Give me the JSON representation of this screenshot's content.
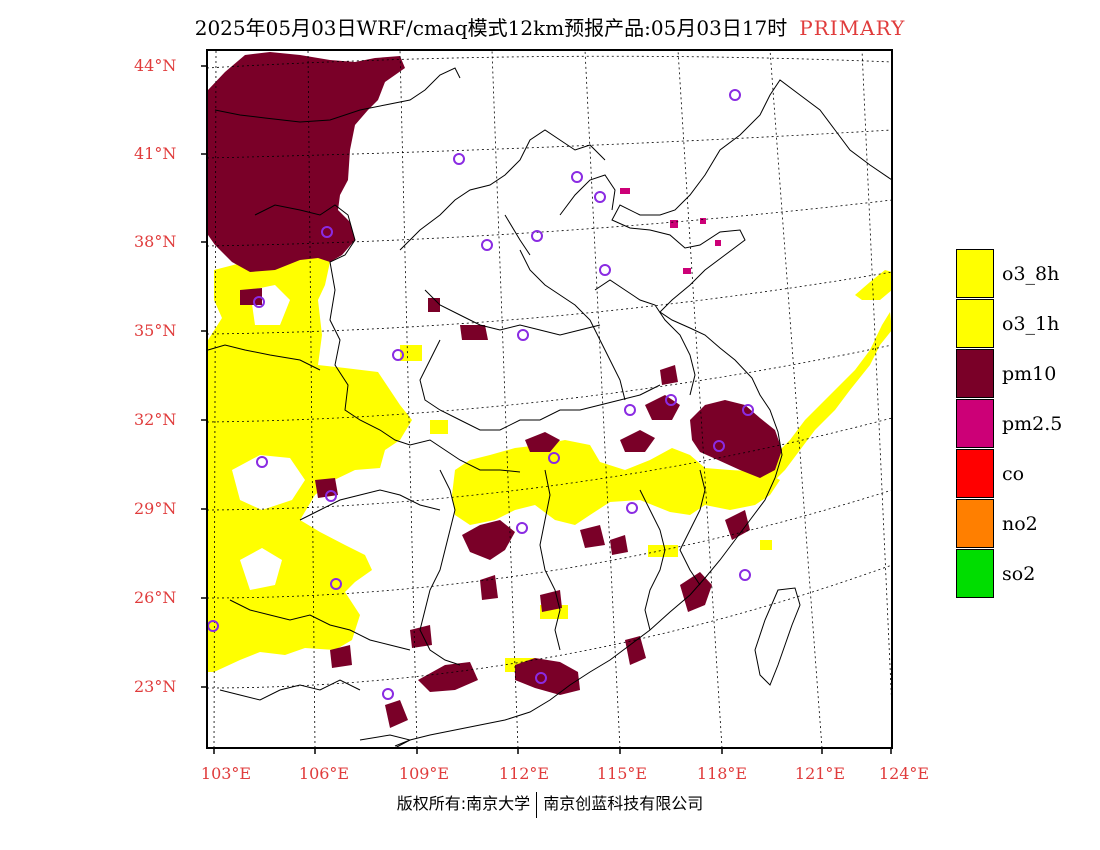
{
  "title": {
    "main": "2025年05月03日WRF/cmaq模式12km预报产品:05月03日17时",
    "tag": "PRIMARY"
  },
  "latitude_labels": [
    "44°N",
    "41°N",
    "38°N",
    "35°N",
    "32°N",
    "29°N",
    "26°N",
    "23°N"
  ],
  "longitude_labels": [
    "103°E",
    "106°E",
    "109°E",
    "112°E",
    "115°E",
    "118°E",
    "121°E",
    "124°E"
  ],
  "legend": [
    {
      "label": "o3_8h",
      "color": "#ffff00"
    },
    {
      "label": "o3_1h",
      "color": "#ffff00"
    },
    {
      "label": "pm10",
      "color": "#7a0028"
    },
    {
      "label": "pm2.5",
      "color": "#cc0077"
    },
    {
      "label": "co",
      "color": "#ff0000"
    },
    {
      "label": "no2",
      "color": "#ff7f00"
    },
    {
      "label": "so2",
      "color": "#00dd00"
    }
  ],
  "copyright": {
    "left": "版权所有:南京大学",
    "right": "南京创蓝科技有限公司"
  },
  "map": {
    "lon_range": [
      103,
      124
    ],
    "lat_range": [
      21.9,
      44.4
    ],
    "colors": {
      "o3": "#ffff00",
      "pm10": "#7a0028",
      "pm25": "#cc0077",
      "station": "#8a2be2",
      "border": "#000000"
    }
  }
}
